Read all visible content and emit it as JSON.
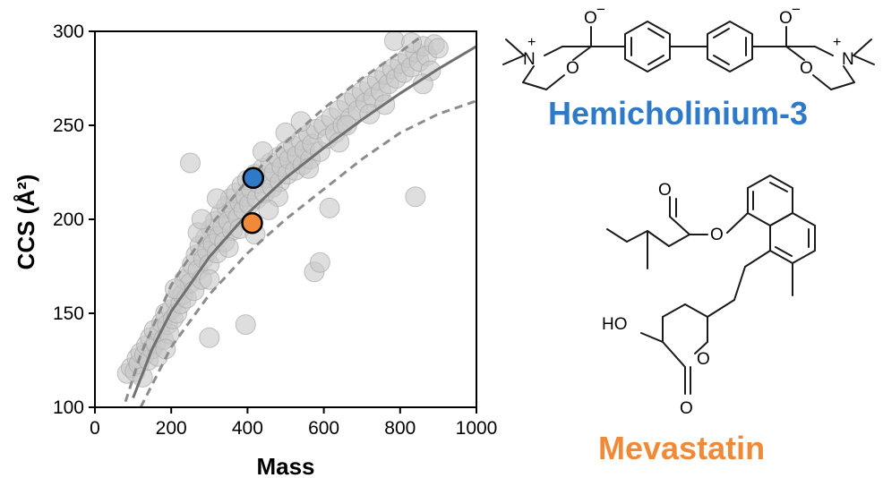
{
  "chart_data": {
    "type": "scatter",
    "xlabel": "Mass",
    "ylabel": "CCS (Å²)",
    "xlim": [
      0,
      1000
    ],
    "ylim": [
      100,
      300
    ],
    "x_ticks": [
      "0",
      "200",
      "400",
      "600",
      "800",
      "1000"
    ],
    "y_ticks": [
      "100",
      "150",
      "200",
      "250",
      "300"
    ],
    "grid": false,
    "fit_curve": {
      "style": "solid",
      "points": [
        [
          100,
          105
        ],
        [
          150,
          131
        ],
        [
          200,
          151
        ],
        [
          300,
          180
        ],
        [
          400,
          203
        ],
        [
          500,
          222
        ],
        [
          600,
          238
        ],
        [
          700,
          253
        ],
        [
          800,
          267
        ],
        [
          900,
          280
        ],
        [
          1000,
          292
        ]
      ]
    },
    "prediction_bounds": [
      {
        "name": "upper",
        "style": "dashed",
        "points": [
          [
            80,
            103
          ],
          [
            120,
            128
          ],
          [
            200,
            165
          ],
          [
            300,
            196
          ],
          [
            400,
            221
          ],
          [
            500,
            241
          ],
          [
            600,
            259
          ],
          [
            700,
            275
          ],
          [
            800,
            289
          ],
          [
            860,
            298
          ]
        ]
      },
      {
        "name": "lower",
        "style": "dashed",
        "points": [
          [
            120,
            100
          ],
          [
            200,
            132
          ],
          [
            300,
            160
          ],
          [
            400,
            182
          ],
          [
            500,
            200
          ],
          [
            600,
            216
          ],
          [
            700,
            232
          ],
          [
            800,
            246
          ],
          [
            900,
            256
          ],
          [
            1000,
            263
          ]
        ]
      }
    ],
    "points": [
      [
        85,
        118
      ],
      [
        95,
        121
      ],
      [
        105,
        119
      ],
      [
        110,
        126
      ],
      [
        115,
        123
      ],
      [
        120,
        129
      ],
      [
        125,
        116
      ],
      [
        130,
        128
      ],
      [
        135,
        133
      ],
      [
        140,
        125
      ],
      [
        145,
        137
      ],
      [
        150,
        131
      ],
      [
        155,
        141
      ],
      [
        160,
        134
      ],
      [
        165,
        127
      ],
      [
        170,
        140
      ],
      [
        175,
        145
      ],
      [
        180,
        136
      ],
      [
        185,
        150
      ],
      [
        190,
        144
      ],
      [
        195,
        139
      ],
      [
        200,
        152
      ],
      [
        205,
        147
      ],
      [
        210,
        157
      ],
      [
        215,
        150
      ],
      [
        220,
        162
      ],
      [
        225,
        155
      ],
      [
        230,
        160
      ],
      [
        235,
        168
      ],
      [
        240,
        158
      ],
      [
        245,
        171
      ],
      [
        250,
        166
      ],
      [
        255,
        176
      ],
      [
        260,
        162
      ],
      [
        265,
        181
      ],
      [
        270,
        173
      ],
      [
        275,
        186
      ],
      [
        280,
        168
      ],
      [
        285,
        179
      ],
      [
        290,
        190
      ],
      [
        295,
        183
      ],
      [
        300,
        176
      ],
      [
        305,
        195
      ],
      [
        310,
        187
      ],
      [
        315,
        199
      ],
      [
        320,
        182
      ],
      [
        325,
        191
      ],
      [
        330,
        203
      ],
      [
        335,
        196
      ],
      [
        340,
        188
      ],
      [
        345,
        207
      ],
      [
        350,
        199
      ],
      [
        355,
        211
      ],
      [
        360,
        194
      ],
      [
        365,
        205
      ],
      [
        370,
        214
      ],
      [
        375,
        201
      ],
      [
        380,
        209
      ],
      [
        385,
        218
      ],
      [
        390,
        205
      ],
      [
        395,
        212
      ],
      [
        400,
        221
      ],
      [
        405,
        208
      ],
      [
        410,
        216
      ],
      [
        420,
        224
      ],
      [
        425,
        211
      ],
      [
        430,
        219
      ],
      [
        440,
        227
      ],
      [
        445,
        214
      ],
      [
        450,
        222
      ],
      [
        460,
        230
      ],
      [
        465,
        217
      ],
      [
        470,
        225
      ],
      [
        480,
        233
      ],
      [
        485,
        220
      ],
      [
        490,
        228
      ],
      [
        500,
        236
      ],
      [
        505,
        224
      ],
      [
        510,
        232
      ],
      [
        520,
        239
      ],
      [
        525,
        226
      ],
      [
        530,
        234
      ],
      [
        540,
        242
      ],
      [
        545,
        229
      ],
      [
        550,
        237
      ],
      [
        560,
        245
      ],
      [
        565,
        232
      ],
      [
        570,
        240
      ],
      [
        580,
        248
      ],
      [
        590,
        236
      ],
      [
        600,
        250
      ],
      [
        610,
        243
      ],
      [
        620,
        254
      ],
      [
        630,
        246
      ],
      [
        640,
        258
      ],
      [
        650,
        250
      ],
      [
        660,
        262
      ],
      [
        670,
        254
      ],
      [
        680,
        265
      ],
      [
        690,
        258
      ],
      [
        700,
        268
      ],
      [
        710,
        262
      ],
      [
        720,
        271
      ],
      [
        730,
        265
      ],
      [
        740,
        274
      ],
      [
        750,
        268
      ],
      [
        760,
        277
      ],
      [
        770,
        272
      ],
      [
        780,
        280
      ],
      [
        790,
        275
      ],
      [
        800,
        283
      ],
      [
        810,
        278
      ],
      [
        820,
        286
      ],
      [
        830,
        281
      ],
      [
        840,
        289
      ],
      [
        850,
        284
      ],
      [
        860,
        292
      ],
      [
        870,
        287
      ],
      [
        880,
        279
      ],
      [
        890,
        293
      ],
      [
        900,
        291
      ],
      [
        785,
        295
      ],
      [
        830,
        294
      ],
      [
        860,
        272
      ],
      [
        720,
        256
      ],
      [
        640,
        241
      ],
      [
        560,
        227
      ],
      [
        480,
        212
      ],
      [
        380,
        195
      ],
      [
        300,
        168
      ],
      [
        250,
        230
      ],
      [
        395,
        144
      ],
      [
        575,
        172
      ],
      [
        590,
        177
      ],
      [
        840,
        212
      ],
      [
        615,
        206
      ],
      [
        300,
        137
      ],
      [
        210,
        163
      ],
      [
        270,
        193
      ],
      [
        185,
        131
      ],
      [
        350,
        185
      ],
      [
        440,
        236
      ],
      [
        540,
        252
      ],
      [
        660,
        250
      ],
      [
        760,
        261
      ],
      [
        320,
        211
      ],
      [
        280,
        200
      ],
      [
        455,
        205
      ],
      [
        500,
        246
      ],
      [
        420,
        192
      ]
    ],
    "highlights": [
      {
        "name": "Hemicholinium-3",
        "x": 415,
        "y": 222,
        "color": "#2e79c8"
      },
      {
        "name": "Mevastatin",
        "x": 412,
        "y": 198,
        "color": "#f08a38"
      }
    ]
  },
  "labels": {
    "hemicholinium": "Hemicholinium-3",
    "mevastatin": "Mevastatin"
  },
  "colors": {
    "hemicholinium": "#2e79c8",
    "mevastatin": "#f08a38",
    "points": "#c8c8c8",
    "curve": "#707070"
  },
  "structure_labels": {
    "oxide_charge": "O",
    "minus": "−",
    "ring_oxygen": "O",
    "nitrogen": "N",
    "plus": "+",
    "hydroxyl": "HO",
    "carbonyl_oxygen": "O"
  }
}
